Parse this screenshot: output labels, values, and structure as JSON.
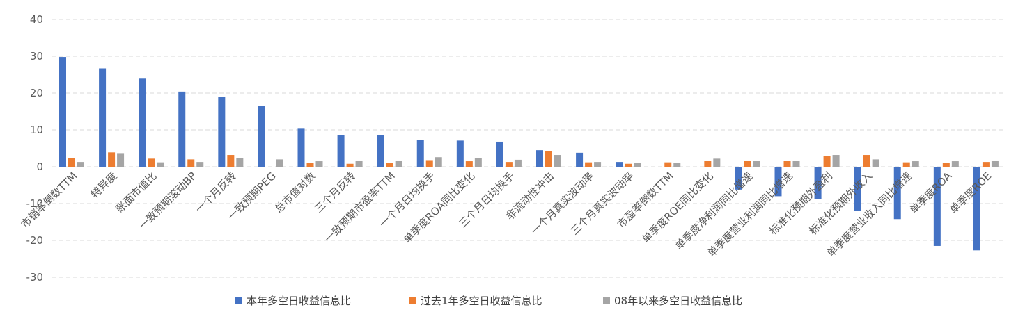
{
  "chart_data": {
    "type": "bar",
    "title": "",
    "xlabel": "",
    "ylabel": "",
    "ylim": [
      -30,
      40
    ],
    "yticks": [
      -30,
      -20,
      -10,
      0,
      10,
      20,
      30,
      40
    ],
    "grid": true,
    "legend_position": "bottom-center",
    "categories": [
      "市销率倒数TTM",
      "特异度",
      "账面市值比",
      "一致预期滚动BP",
      "一个月反转",
      "一致预期PEG",
      "总市值对数",
      "三个月反转",
      "一致预期市盈率TTM",
      "一个月日均换手",
      "单季度ROA同比变化",
      "三个月日均换手",
      "非流动性冲击",
      "一个月真实波动率",
      "三个月真实波动率",
      "市盈率倒数TTM",
      "单季度ROE同比变化",
      "单季度净利润同比增速",
      "单季度营业利润同比增速",
      "标准化预期外盈利",
      "标准化预期外收入",
      "单季度营业收入同比增速",
      "单季度ROA",
      "单季度ROE"
    ],
    "series": [
      {
        "name": "本年多空日收益信息比",
        "color": "#4472c4",
        "values": [
          29.8,
          26.7,
          24.1,
          20.4,
          18.9,
          16.6,
          10.5,
          8.6,
          8.6,
          7.3,
          7.1,
          6.8,
          4.5,
          3.8,
          1.3,
          0,
          0,
          -6.2,
          -8.0,
          -8.7,
          -12.0,
          -14.2,
          -21.5,
          -22.7
        ]
      },
      {
        "name": "过去1年多空日收益信息比",
        "color": "#ed7d31",
        "values": [
          2.4,
          3.9,
          2.2,
          2.0,
          3.2,
          0,
          1.1,
          0.8,
          1.0,
          1.8,
          1.5,
          1.3,
          4.3,
          1.2,
          0.8,
          1.2,
          1.6,
          1.7,
          1.6,
          3.0,
          3.2,
          1.2,
          1.1,
          1.3
        ]
      },
      {
        "name": "08年以来多空日收益信息比",
        "color": "#a5a5a5",
        "values": [
          1.3,
          3.7,
          1.2,
          1.3,
          2.3,
          2.0,
          1.5,
          1.7,
          1.7,
          2.6,
          2.4,
          1.9,
          3.2,
          1.3,
          1.0,
          1.0,
          2.2,
          1.6,
          1.6,
          3.2,
          2.0,
          1.5,
          1.5,
          1.7
        ]
      }
    ]
  }
}
